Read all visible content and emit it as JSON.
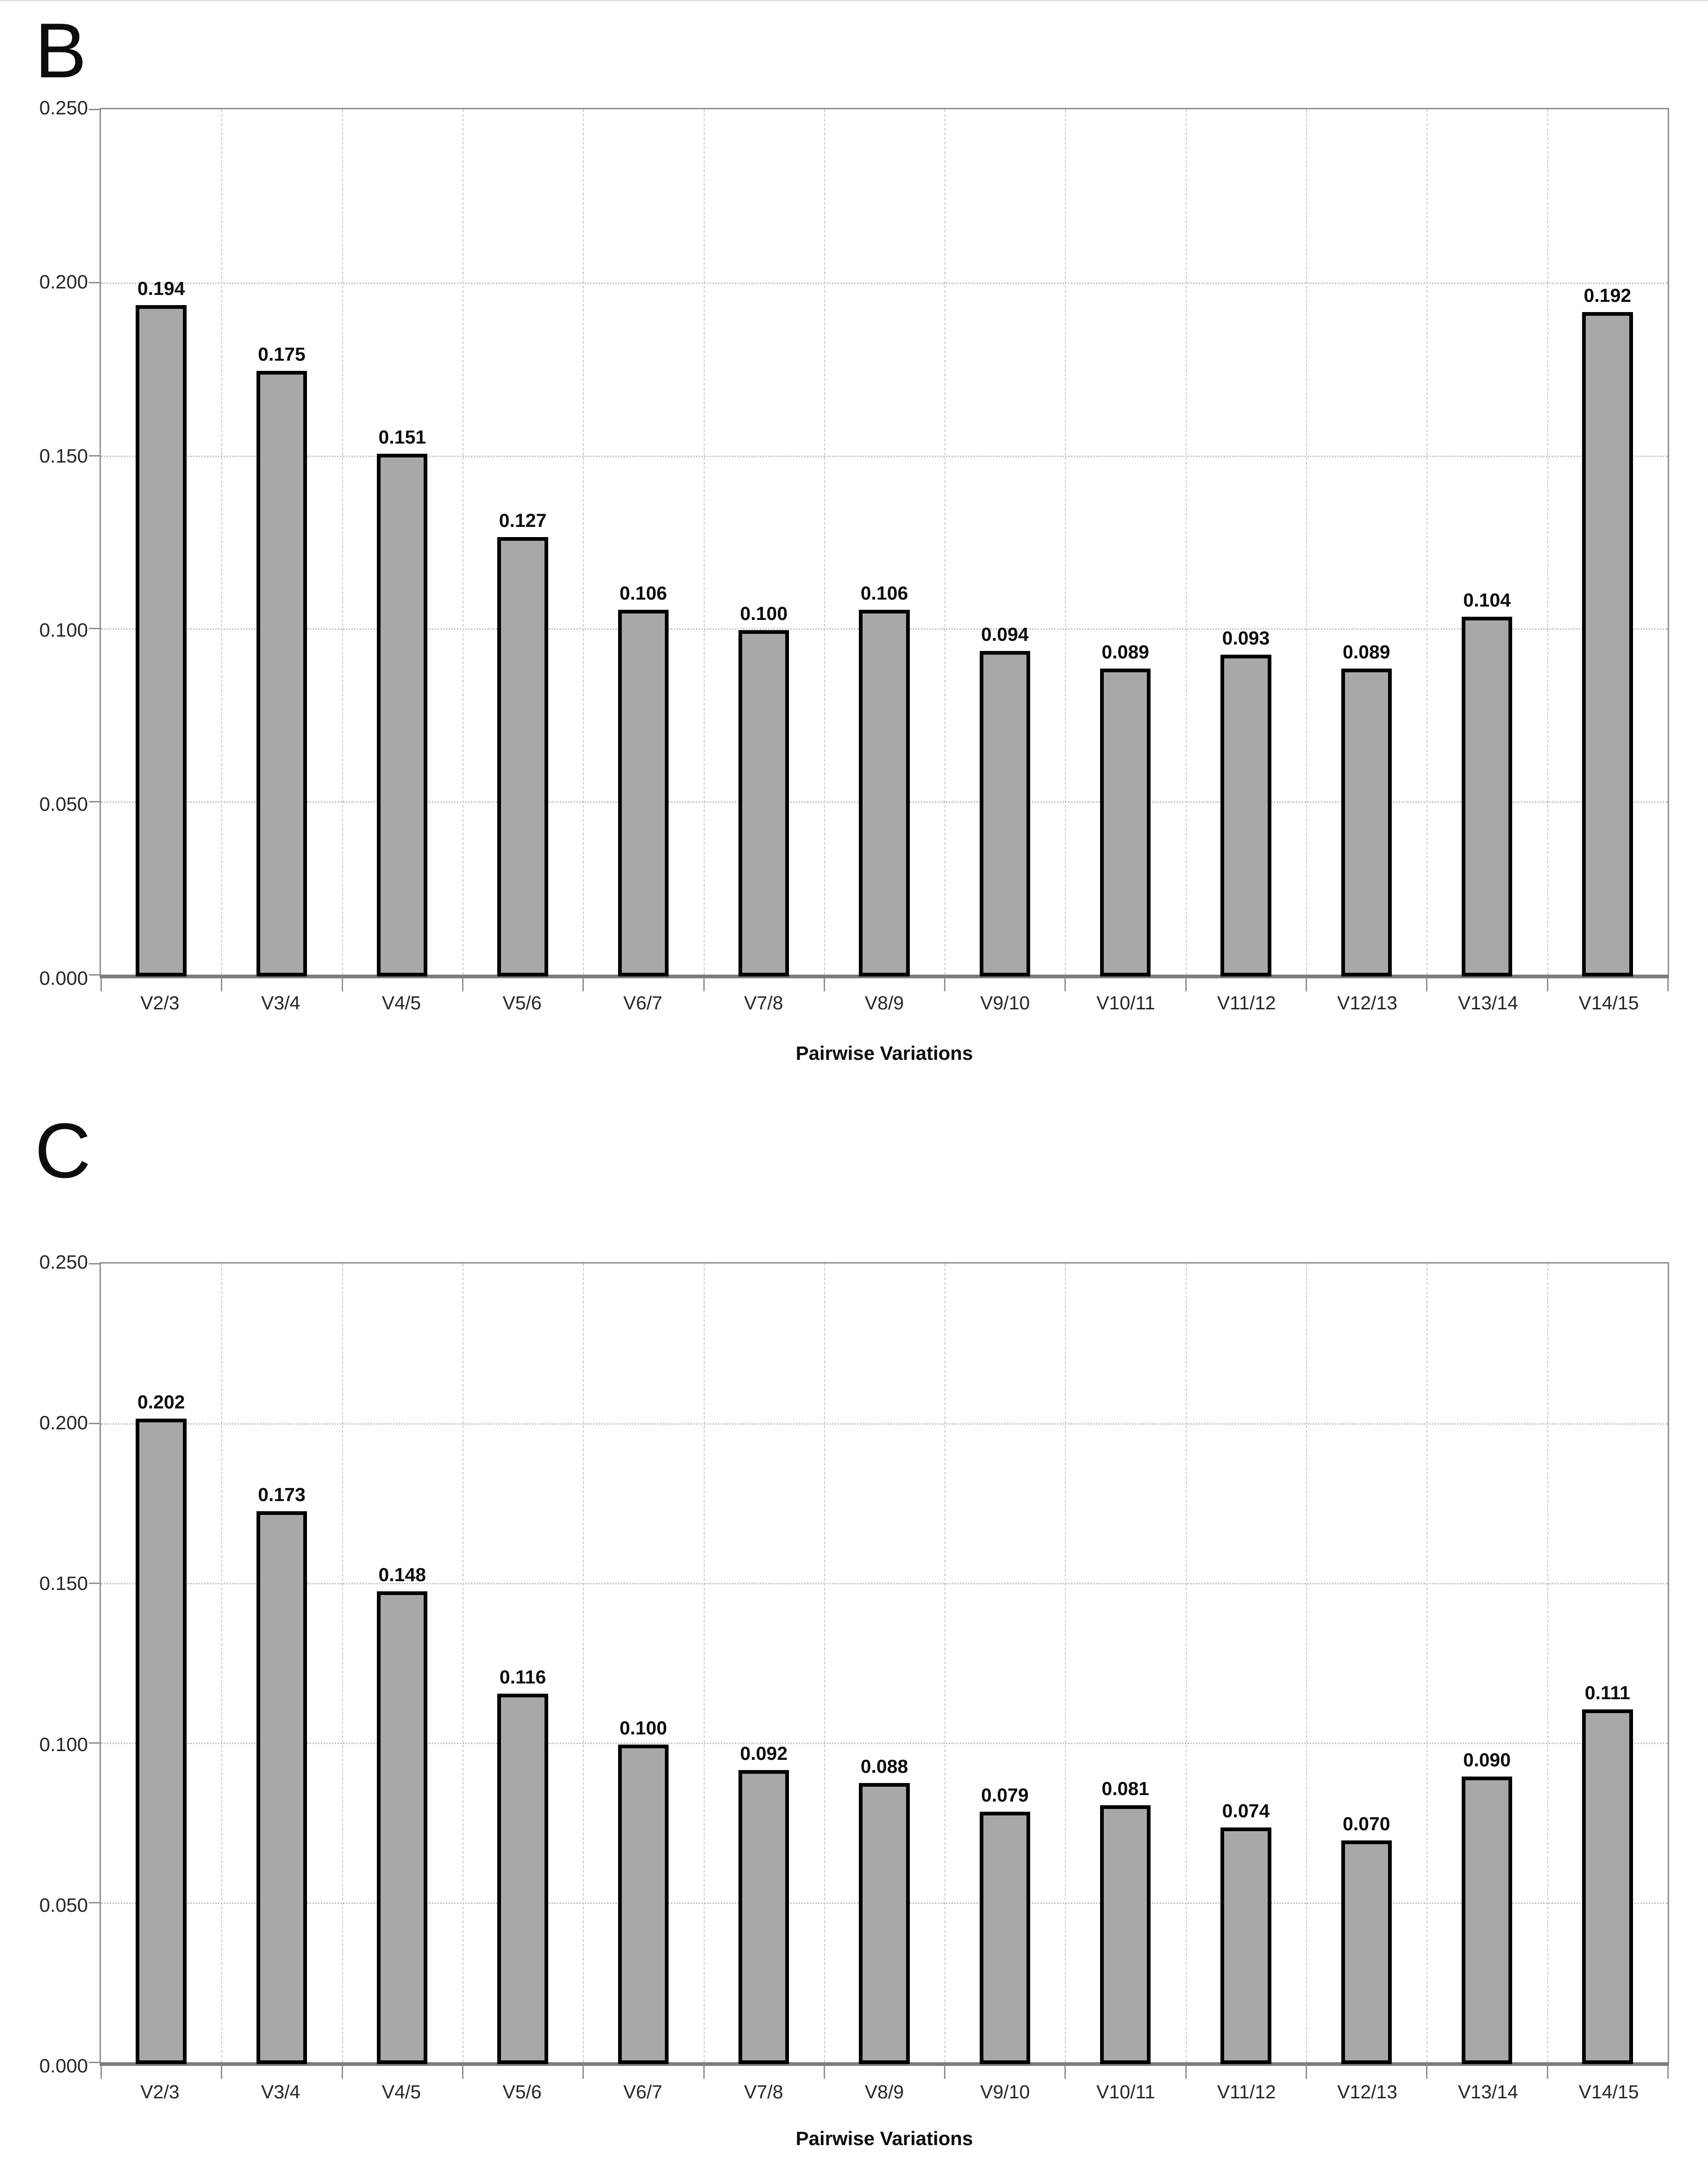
{
  "figure": {
    "background": "#ffffff"
  },
  "colors": {
    "bar_fill": "#a8a8a8",
    "bar_border": "#000000",
    "plot_frame": "#8f8f8f",
    "axis_line": "#7d7d7d",
    "grid_horizontal": "#bdbdbd",
    "grid_vertical": "#c9c9c9",
    "text": "#0d0d0d"
  },
  "chart_data": [
    {
      "type": "bar",
      "panel_label": "B",
      "title": "",
      "xlabel": "Pairwise Variations",
      "ylabel": "",
      "ylim": [
        0,
        0.25
      ],
      "ytick_step": 0.05,
      "ytick_labels": [
        "0.250",
        "0.200",
        "0.150",
        "0.100",
        "0.050",
        "0.000"
      ],
      "grid": true,
      "legend_position": "none",
      "categories": [
        "V2/3",
        "V3/4",
        "V4/5",
        "V5/6",
        "V6/7",
        "V7/8",
        "V8/9",
        "V9/10",
        "V10/11",
        "V11/12",
        "V12/13",
        "V13/14",
        "V14/15"
      ],
      "values": [
        0.194,
        0.175,
        0.151,
        0.127,
        0.106,
        0.1,
        0.106,
        0.094,
        0.089,
        0.093,
        0.089,
        0.104,
        0.192
      ],
      "bar_labels": [
        "0.194",
        "0.175",
        "0.151",
        "0.127",
        "0.106",
        "0.100",
        "0.106",
        "0.094",
        "0.089",
        "0.093",
        "0.089",
        "0.104",
        "0.192"
      ]
    },
    {
      "type": "bar",
      "panel_label": "C",
      "title": "",
      "xlabel": "Pairwise Variations",
      "ylabel": "",
      "ylim": [
        0,
        0.25
      ],
      "ytick_step": 0.05,
      "ytick_labels": [
        "0.250",
        "0.200",
        "0.150",
        "0.100",
        "0.050",
        "0.000"
      ],
      "grid": true,
      "legend_position": "none",
      "categories": [
        "V2/3",
        "V3/4",
        "V4/5",
        "V5/6",
        "V6/7",
        "V7/8",
        "V8/9",
        "V9/10",
        "V10/11",
        "V11/12",
        "V12/13",
        "V13/14",
        "V14/15"
      ],
      "values": [
        0.202,
        0.173,
        0.148,
        0.116,
        0.1,
        0.092,
        0.088,
        0.079,
        0.081,
        0.074,
        0.07,
        0.09,
        0.111
      ],
      "bar_labels": [
        "0.202",
        "0.173",
        "0.148",
        "0.116",
        "0.100",
        "0.092",
        "0.088",
        "0.079",
        "0.081",
        "0.074",
        "0.070",
        "0.090",
        "0.111"
      ]
    }
  ]
}
